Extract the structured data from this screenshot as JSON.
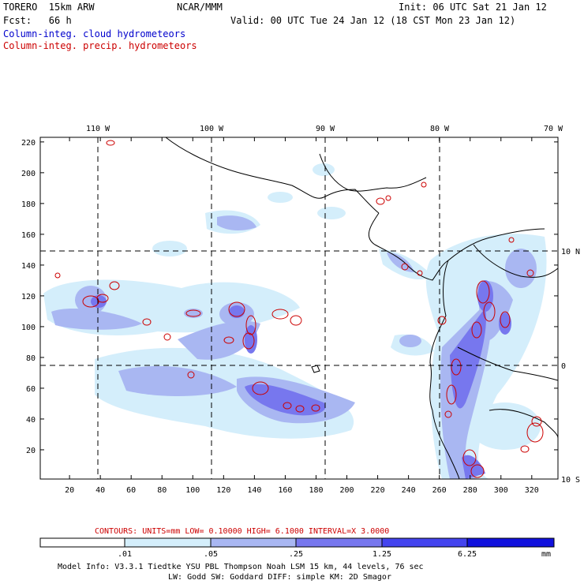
{
  "header": {
    "model": "TORERO  15km ARW",
    "org": "NCAR/MMM",
    "init": "Init: 06 UTC Sat 21 Jan 12",
    "fcst": "Fcst:   66 h",
    "valid": "Valid: 00 UTC Tue 24 Jan 12 (18 CST Mon 23 Jan 12)",
    "field1": "Column-integ. cloud hydrometeors",
    "field2": "Column-integ. precip. hydrometeors"
  },
  "colors": {
    "field1": "#0000cc",
    "field2": "#cc0000",
    "shade": [
      "#ffffff",
      "#d4eefb",
      "#a9b7f2",
      "#7777ee",
      "#4444ee",
      "#1111dd"
    ]
  },
  "grid": {
    "x_ticks": [
      "20",
      "40",
      "60",
      "80",
      "100",
      "120",
      "140",
      "160",
      "180",
      "200",
      "220",
      "240",
      "260",
      "280",
      "300",
      "320"
    ],
    "y_ticks": [
      "20",
      "40",
      "60",
      "80",
      "100",
      "120",
      "140",
      "160",
      "180",
      "200",
      "220"
    ],
    "lon_labels": [
      "110 W",
      "100 W",
      "90 W",
      "80 W",
      "70 W"
    ],
    "lat_labels": [
      "10 N",
      "0",
      "10 S"
    ]
  },
  "contours": {
    "info": "CONTOURS:  UNITS=mm  LOW= 0.10000      HIGH=  6.1000      INTERVAL=X  3.0000"
  },
  "colorbar": {
    "labels": [
      ".01",
      ".05",
      ".25",
      "1.25",
      "6.25"
    ],
    "unit": "mm"
  },
  "footer": {
    "line1": "Model Info: V3.3.1    Tiedtke YSU PBL  Thompson     Noah LSM  15 km,   44 levels,   76 sec",
    "line2": "LW: Godd SW: Goddard DIFF: simple KM: 2D Smagor"
  }
}
